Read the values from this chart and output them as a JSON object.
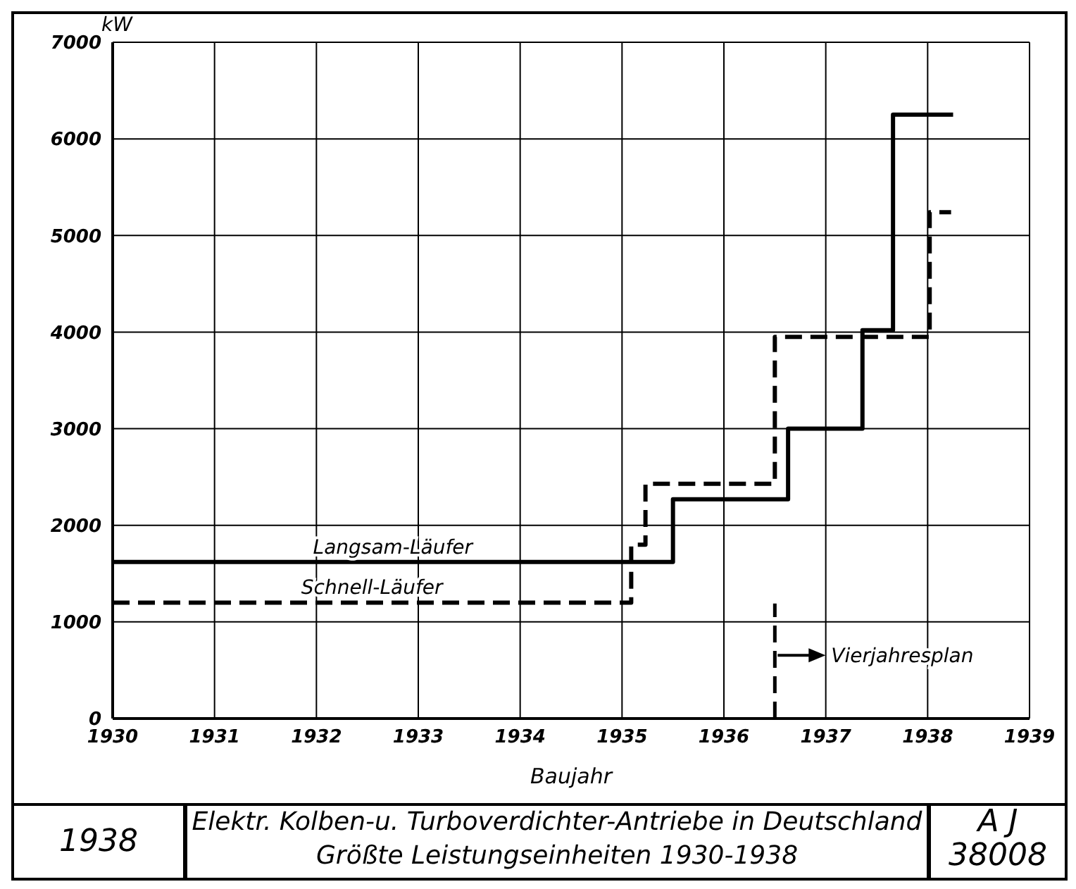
{
  "chart_data": {
    "type": "step",
    "title": "Elektr. Kolben-u. Turboverdichter-Antriebe in Deutschland",
    "subtitle": "Größte Leistungseinheiten 1930-1938",
    "xlabel": "Baujahr",
    "ylabel": "kW",
    "annotations": [
      "1938",
      "A J",
      "38008"
    ],
    "series": [
      {
        "name": "Langsam-Läufer",
        "color": "#000000",
        "line_style": "solid",
        "x": [
          1930,
          1935.5,
          1936.63,
          1937.36,
          1937.66,
          1938.25
        ],
        "values": [
          1620,
          2270,
          3000,
          4020,
          6250,
          6250
        ]
      },
      {
        "name": "Schnell-Läufer",
        "color": "#000000",
        "line_style": "dashed",
        "x": [
          1930,
          1935.09,
          1935.23,
          1936.5,
          1938.02,
          1938.23
        ],
        "values": [
          1200,
          1800,
          2430,
          3950,
          5240,
          5240
        ]
      }
    ],
    "xlim": [
      1930,
      1939
    ],
    "xticks": [
      1930,
      1931,
      1932,
      1933,
      1934,
      1935,
      1936,
      1937,
      1938,
      1939
    ],
    "ylim": [
      0,
      7000
    ],
    "yticks": [
      0,
      1000,
      2000,
      3000,
      4000,
      5000,
      6000,
      7000
    ],
    "grid": true,
    "legend": false,
    "marker": "none",
    "ref_lines": [
      {
        "axis": "x",
        "value": 1936.5,
        "label": "Vierjahresplan",
        "line_style": "dashed",
        "color": "#000000"
      }
    ]
  }
}
